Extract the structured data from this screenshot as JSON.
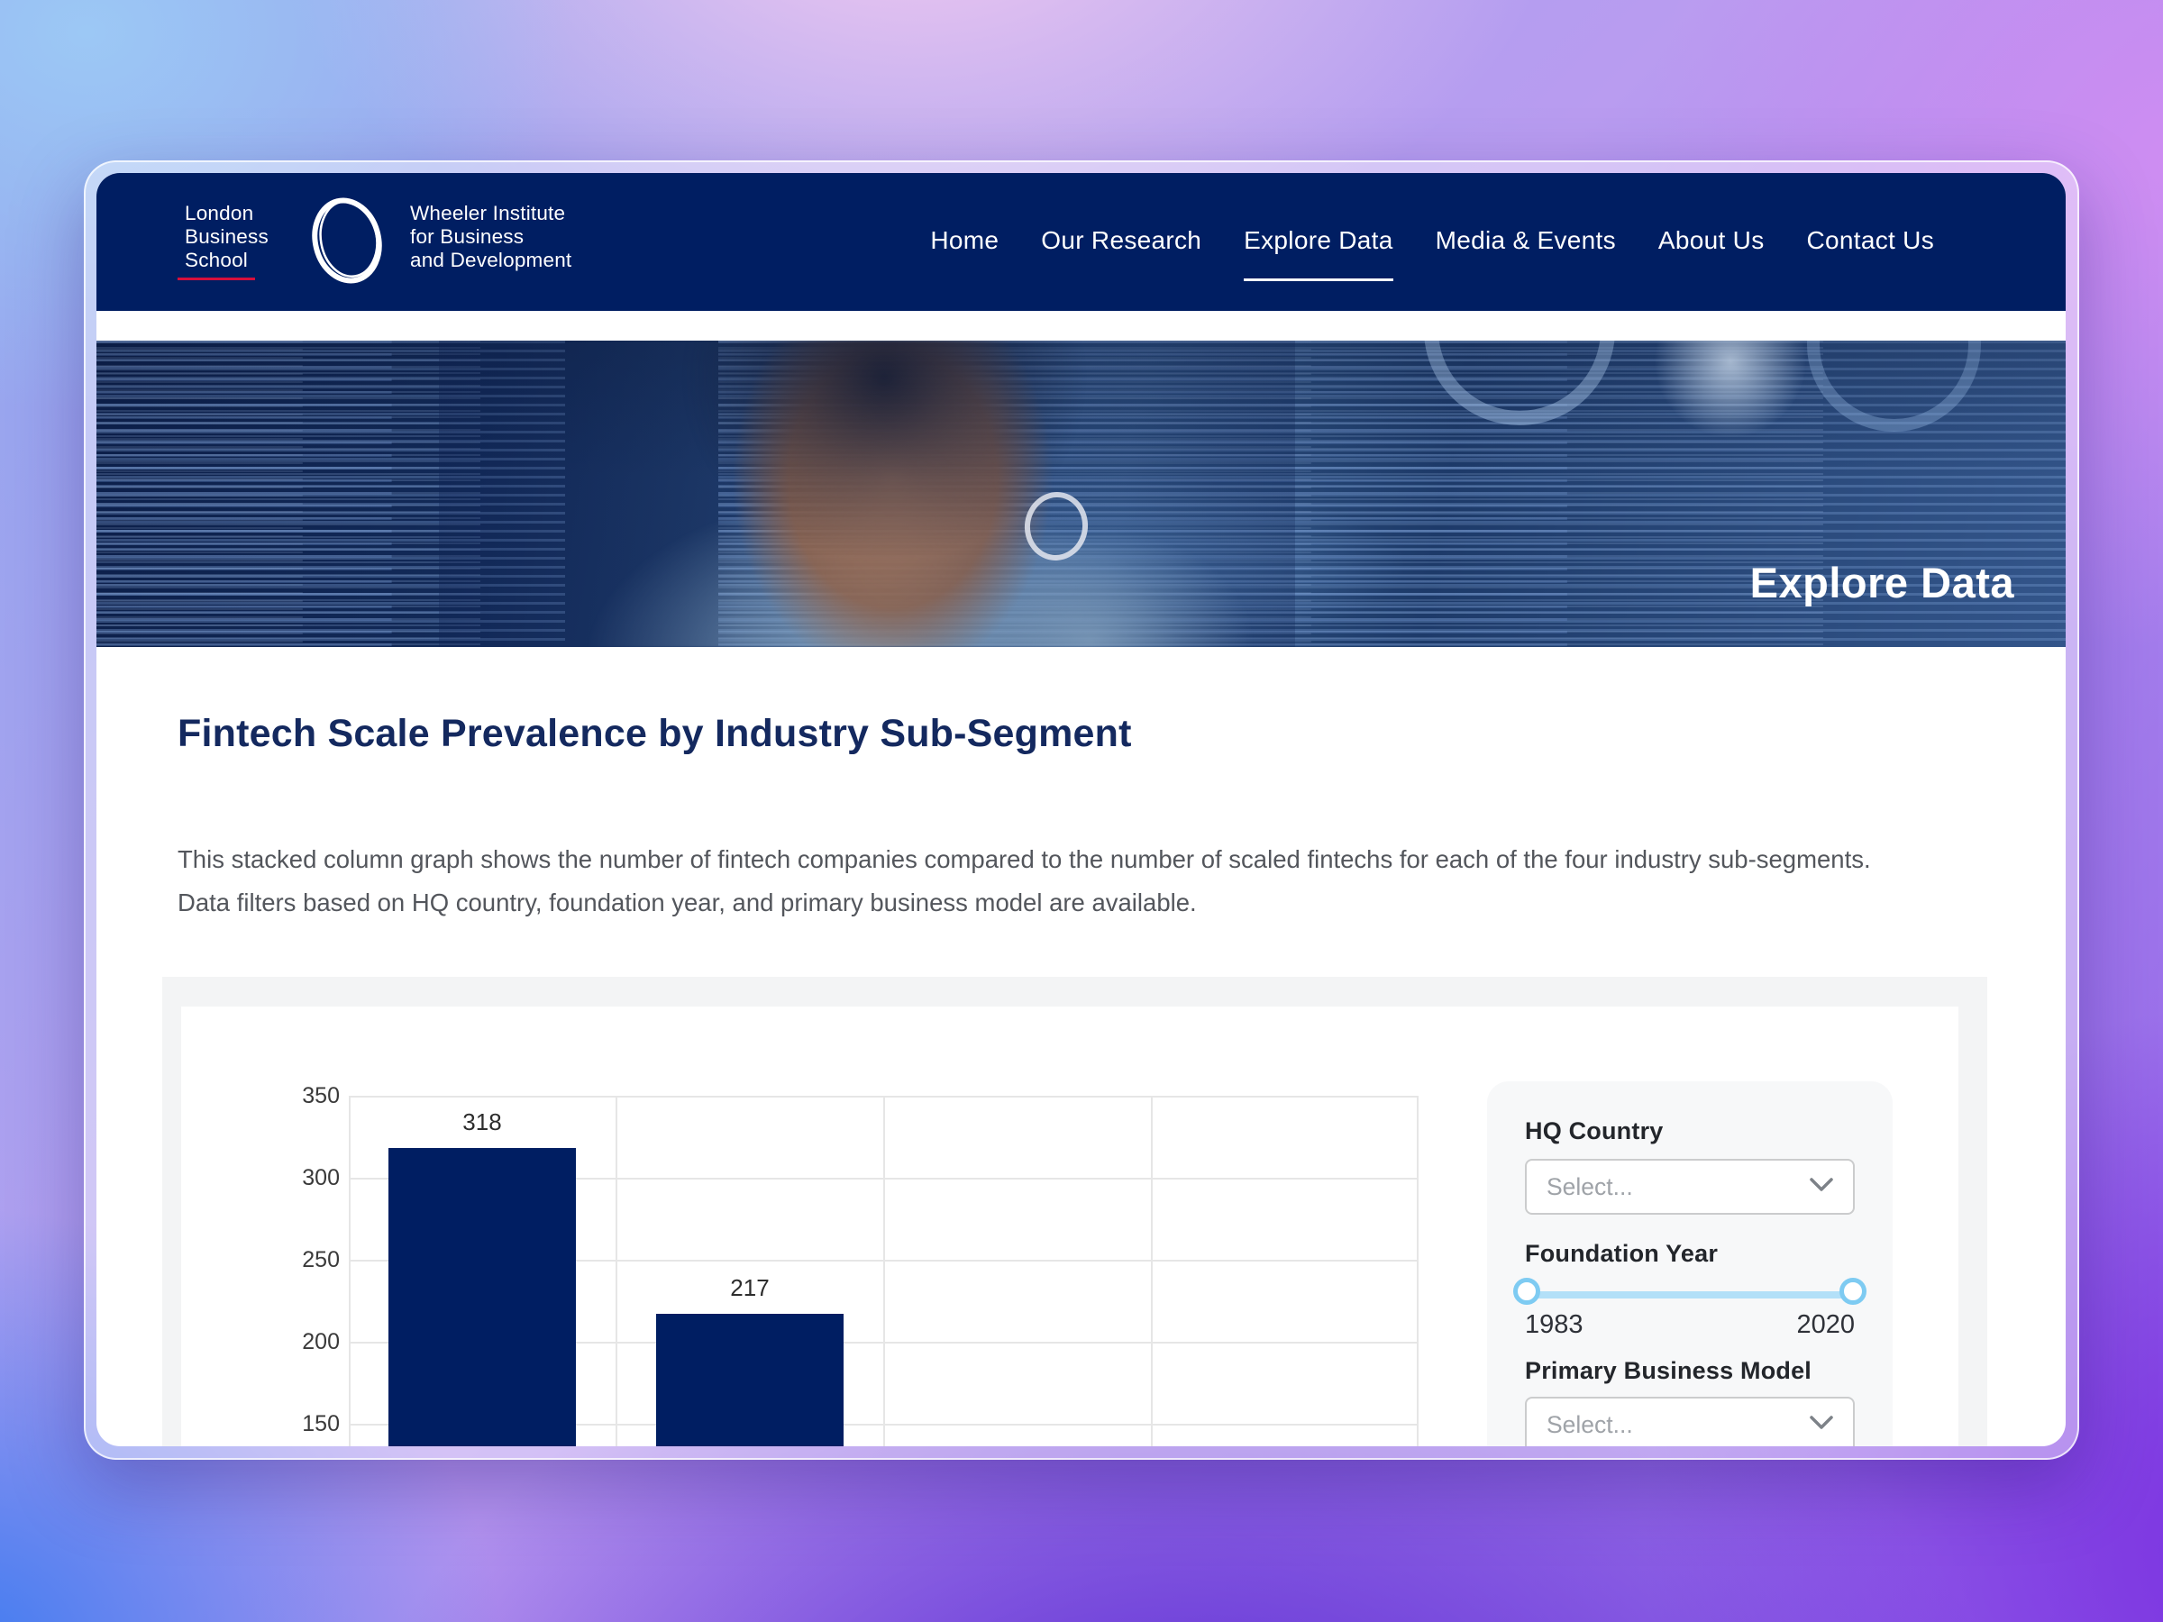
{
  "brand": {
    "school": [
      "London",
      "Business",
      "School"
    ],
    "institute": [
      "Wheeler Institute",
      "for Business",
      "and Development"
    ]
  },
  "nav": {
    "items": [
      {
        "label": "Home",
        "active": false
      },
      {
        "label": "Our Research",
        "active": false
      },
      {
        "label": "Explore Data",
        "active": true
      },
      {
        "label": "Media & Events",
        "active": false
      },
      {
        "label": "About Us",
        "active": false
      },
      {
        "label": "Contact Us",
        "active": false
      }
    ]
  },
  "hero": {
    "heading": "Explore Data"
  },
  "content": {
    "title": "Fintech Scale Prevalence by Industry Sub-Segment",
    "description": [
      "This stacked column graph shows the number of fintech companies compared to the number of scaled fintechs for each of the four industry sub-segments.",
      "Data filters based on HQ country, foundation year, and primary business model are available."
    ]
  },
  "chart_data": {
    "type": "bar",
    "title": "Fintech Scale Prevalence by Industry Sub-Segment",
    "y_ticks": [
      350,
      300,
      250,
      200,
      150
    ],
    "y_axis_visible_range": [
      150,
      350
    ],
    "categories_visible_count": 4,
    "category_labels_visible": false,
    "values_visible": [
      318,
      217
    ],
    "bar_color": "#001e62",
    "grid": true,
    "legend": "none",
    "note": "Chart is truncated at the bottom of the viewport; x-axis and any further bars are not visible"
  },
  "filters": {
    "hq_country": {
      "label": "HQ Country",
      "placeholder": "Select..."
    },
    "foundation_year": {
      "label": "Foundation Year",
      "min_label": "1983",
      "max_label": "2020"
    },
    "primary_business_model": {
      "label": "Primary Business Model",
      "placeholder": "Select..."
    }
  },
  "colors": {
    "header_navy": "#001e62",
    "accent_red": "#d60f3c",
    "title_navy": "#14295f",
    "bar_navy": "#001e62",
    "slider_blue": "#b3e0f8",
    "panel_gray": "#f3f4f5",
    "filter_gray": "#f7f8f9"
  }
}
